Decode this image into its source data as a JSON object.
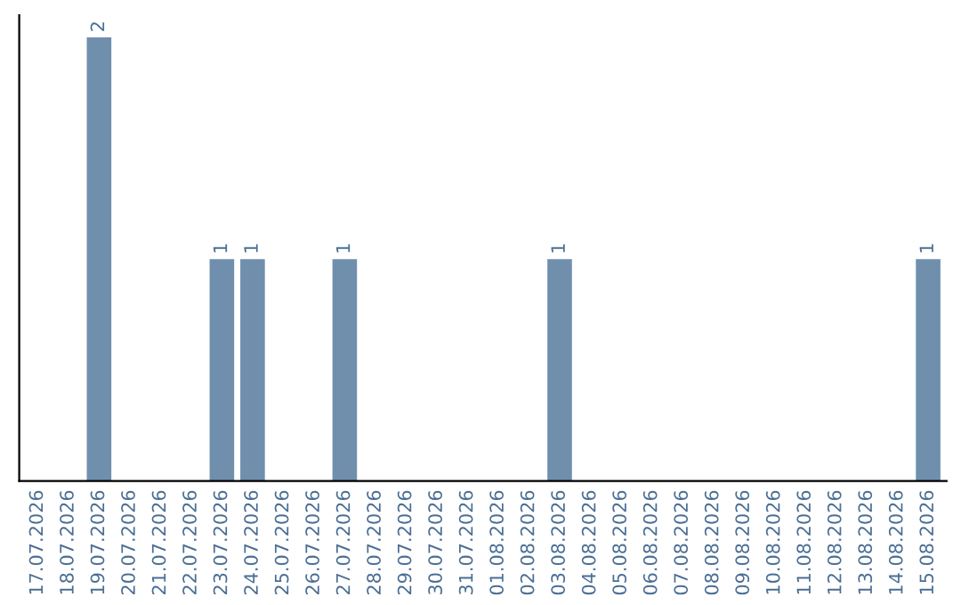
{
  "chart_data": {
    "type": "bar",
    "categories": [
      "17.07.2026",
      "18.07.2026",
      "19.07.2026",
      "20.07.2026",
      "21.07.2026",
      "22.07.2026",
      "23.07.2026",
      "24.07.2026",
      "25.07.2026",
      "26.07.2026",
      "27.07.2026",
      "28.07.2026",
      "29.07.2026",
      "30.07.2026",
      "31.07.2026",
      "01.08.2026",
      "02.08.2026",
      "03.08.2026",
      "04.08.2026",
      "05.08.2026",
      "06.08.2026",
      "07.08.2026",
      "08.08.2026",
      "09.08.2026",
      "10.08.2026",
      "11.08.2026",
      "12.08.2026",
      "13.08.2026",
      "14.08.2026",
      "15.08.2026"
    ],
    "values": [
      0,
      0,
      2,
      0,
      0,
      0,
      1,
      1,
      0,
      0,
      1,
      0,
      0,
      0,
      0,
      0,
      0,
      1,
      0,
      0,
      0,
      0,
      0,
      0,
      0,
      0,
      0,
      0,
      0,
      1
    ],
    "value_labels": [
      null,
      null,
      "2",
      null,
      null,
      null,
      "1",
      "1",
      null,
      null,
      "1",
      null,
      null,
      null,
      null,
      null,
      null,
      "1",
      null,
      null,
      null,
      null,
      null,
      null,
      null,
      null,
      null,
      null,
      null,
      "1"
    ],
    "color": "#6f8fad",
    "tick_labels": "x",
    "grid": false
  }
}
